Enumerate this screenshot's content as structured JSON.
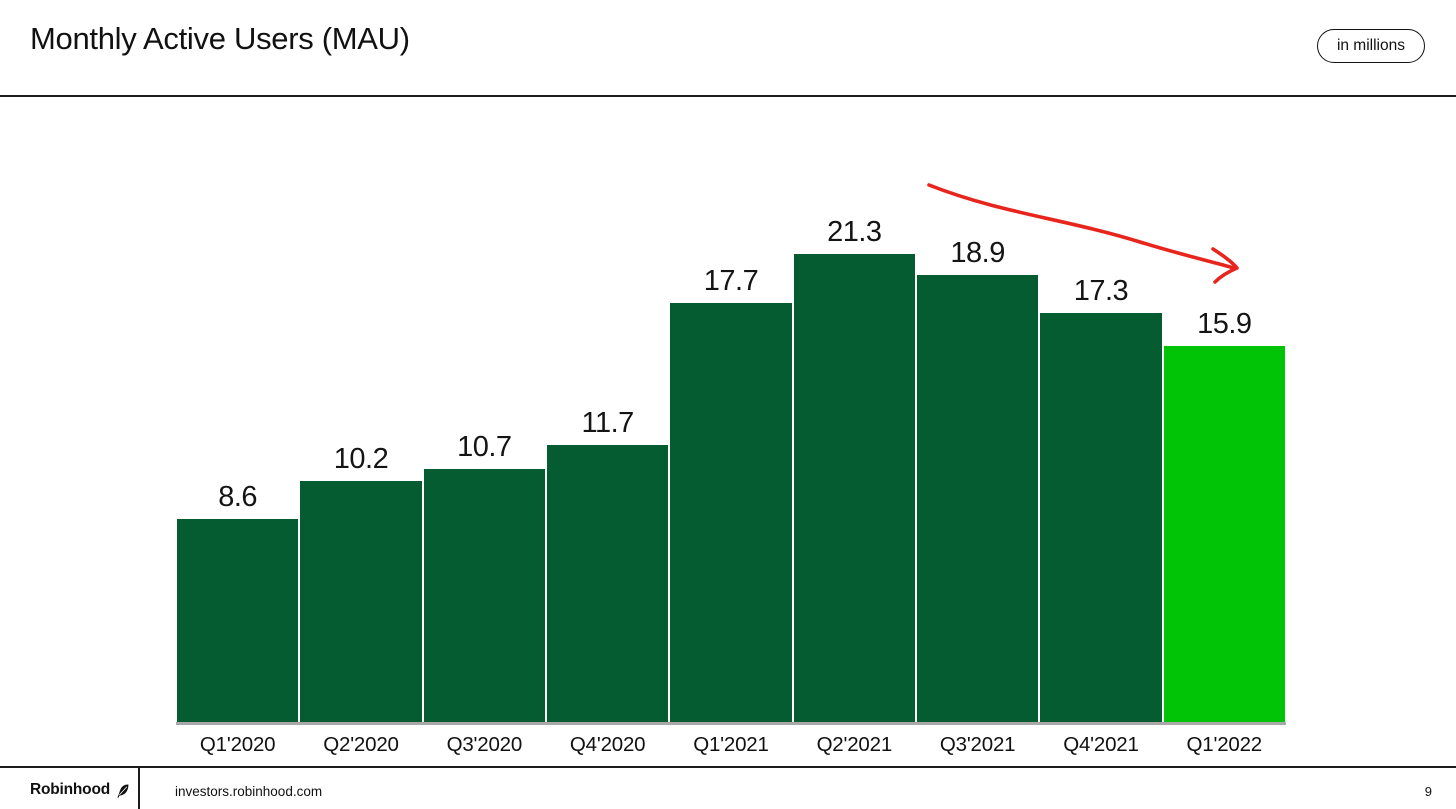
{
  "header": {
    "title": "Monthly Active Users (MAU)",
    "badge": "in millions"
  },
  "chart_data": {
    "type": "bar",
    "title": "Monthly Active Users (MAU)",
    "unit_note": "in millions",
    "categories": [
      "Q1'2020",
      "Q2'2020",
      "Q3'2020",
      "Q4'2020",
      "Q1'2021",
      "Q2'2021",
      "Q3'2021",
      "Q4'2021",
      "Q1'2022"
    ],
    "values": [
      8.6,
      10.2,
      10.7,
      11.7,
      17.7,
      21.3,
      18.9,
      17.3,
      15.9
    ],
    "ylim": [
      0,
      21.3
    ],
    "grid": false,
    "legend": false,
    "bar_color": "#055C30",
    "highlight_color": "#00C405",
    "highlight_index": 8,
    "annotation": {
      "type": "hand-drawn-arrow",
      "color": "#E8251D",
      "from_category": "Q2'2021",
      "to_category": "Q1'2022"
    }
  },
  "footer": {
    "brand": "Robinhood",
    "url": "investors.robinhood.com",
    "page_number": "9"
  }
}
